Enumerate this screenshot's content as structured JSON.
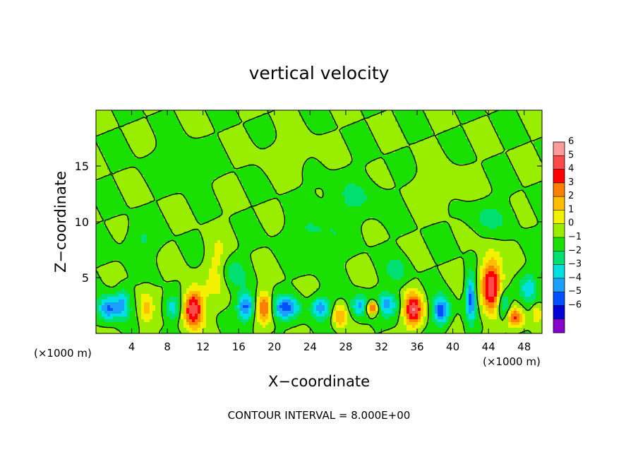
{
  "chart_data": {
    "type": "heatmap",
    "title": "vertical velocity",
    "xlabel": "X−coordinate",
    "ylabel": "Z−coordinate",
    "x_unit_left": "(×1000 m)",
    "x_unit_right": "(×1000 m)",
    "xlim": [
      0,
      50
    ],
    "ylim": [
      0,
      20
    ],
    "x_ticks": [
      4,
      8,
      12,
      16,
      20,
      24,
      28,
      32,
      36,
      40,
      44,
      48
    ],
    "x_tick_labels": [
      "4",
      "8",
      "12",
      "16",
      "20",
      "24",
      "28",
      "32",
      "36",
      "40",
      "44",
      "48"
    ],
    "y_ticks": [
      5,
      10,
      15
    ],
    "y_tick_labels": [
      "5",
      "10",
      "15"
    ],
    "contour_note": "CONTOUR INTERVAL = 8.000E+00",
    "colorbar": {
      "levels": [
        "6",
        "5",
        "4",
        "3",
        "2",
        "1",
        "0",
        "−1",
        "−2",
        "−3",
        "−4",
        "−5",
        "−6"
      ],
      "colors": [
        "#ff9a9a",
        "#ff4a4a",
        "#ff0000",
        "#ff7f00",
        "#ffbf00",
        "#f2f200",
        "#99ee00",
        "#19e000",
        "#00e070",
        "#00e0e0",
        "#1aa0ff",
        "#0050ff",
        "#0000d8",
        "#8800cc"
      ]
    },
    "background_value": 0,
    "features": [
      {
        "kind": "updraft",
        "x": 10.9,
        "z": 2.2,
        "amp": 6.2,
        "rx": 1.1,
        "rz": 1.7
      },
      {
        "kind": "updraft",
        "x": 44.3,
        "z": 4.3,
        "amp": 6.2,
        "rx": 1.1,
        "rz": 2.4
      },
      {
        "kind": "updraft",
        "x": 35.6,
        "z": 2.1,
        "amp": 6.0,
        "rx": 1.0,
        "rz": 1.5
      },
      {
        "kind": "updraft",
        "x": 31.0,
        "z": 2.3,
        "amp": 6.0,
        "rx": 0.7,
        "rz": 0.6
      },
      {
        "kind": "updraft",
        "x": 18.9,
        "z": 2.3,
        "amp": 4.3,
        "rx": 0.8,
        "rz": 1.3
      },
      {
        "kind": "updraft",
        "x": 47.0,
        "z": 1.4,
        "amp": 4.3,
        "rx": 0.9,
        "rz": 0.9
      },
      {
        "kind": "updraft",
        "x": 27.3,
        "z": 1.5,
        "amp": 3.1,
        "rx": 0.8,
        "rz": 1.0
      },
      {
        "kind": "updraft",
        "x": 5.6,
        "z": 2.2,
        "amp": 2.4,
        "rx": 0.8,
        "rz": 1.6
      },
      {
        "kind": "updraft",
        "x": 49.4,
        "z": 1.8,
        "amp": 2.0,
        "rx": 0.6,
        "rz": 0.9
      },
      {
        "kind": "updraft",
        "x": 13.6,
        "z": 5.8,
        "amp": 1.5,
        "rx": 1.3,
        "rz": 2.6
      },
      {
        "kind": "downdraft",
        "x": 1.4,
        "z": 2.2,
        "amp": -4.3,
        "rx": 1.1,
        "rz": 1.1
      },
      {
        "kind": "downdraft",
        "x": 3.0,
        "z": 2.6,
        "amp": -3.0,
        "rx": 0.8,
        "rz": 1.5
      },
      {
        "kind": "downdraft",
        "x": 8.6,
        "z": 2.3,
        "amp": -2.8,
        "rx": 0.9,
        "rz": 1.1
      },
      {
        "kind": "downdraft",
        "x": 16.8,
        "z": 2.4,
        "amp": -4.6,
        "rx": 0.9,
        "rz": 1.2
      },
      {
        "kind": "downdraft",
        "x": 21.3,
        "z": 2.3,
        "amp": -4.4,
        "rx": 1.5,
        "rz": 1.0
      },
      {
        "kind": "downdraft",
        "x": 25.2,
        "z": 2.3,
        "amp": -3.8,
        "rx": 1.1,
        "rz": 1.0
      },
      {
        "kind": "downdraft",
        "x": 29.6,
        "z": 2.4,
        "amp": -3.5,
        "rx": 1.0,
        "rz": 1.0
      },
      {
        "kind": "downdraft",
        "x": 32.6,
        "z": 2.6,
        "amp": -3.4,
        "rx": 1.3,
        "rz": 1.0
      },
      {
        "kind": "downdraft",
        "x": 38.7,
        "z": 2.0,
        "amp": -5.1,
        "rx": 0.9,
        "rz": 1.2
      },
      {
        "kind": "downdraft",
        "x": 42.0,
        "z": 3.2,
        "amp": -4.8,
        "rx": 0.5,
        "rz": 2.1
      },
      {
        "kind": "downdraft",
        "x": 45.7,
        "z": 2.6,
        "amp": -3.4,
        "rx": 0.7,
        "rz": 1.2
      },
      {
        "kind": "downdraft",
        "x": 48.5,
        "z": 4.1,
        "amp": -2.4,
        "rx": 1.0,
        "rz": 1.3
      },
      {
        "kind": "downdraft",
        "x": 15.3,
        "z": 5.5,
        "amp": -1.5,
        "rx": 1.5,
        "rz": 1.4
      },
      {
        "kind": "downdraft",
        "x": 33.8,
        "z": 5.6,
        "amp": -1.4,
        "rx": 1.3,
        "rz": 1.3
      },
      {
        "kind": "downdraft",
        "x": 24.5,
        "z": 8.7,
        "amp": -1.2,
        "rx": 3.0,
        "rz": 2.0
      },
      {
        "kind": "downdraft",
        "x": 44.2,
        "z": 10.4,
        "amp": -1.1,
        "rx": 2.8,
        "rz": 1.4
      },
      {
        "kind": "downdraft",
        "x": 5.0,
        "z": 8.3,
        "amp": -1.1,
        "rx": 1.8,
        "rz": 1.5
      },
      {
        "kind": "downdraft",
        "x": 28.9,
        "z": 12.0,
        "amp": -1.0,
        "rx": 3.5,
        "rz": 2.0
      },
      {
        "kind": "downdraft",
        "x": 9.5,
        "z": 15.3,
        "amp": -0.8,
        "rx": 3.0,
        "rz": 1.5
      },
      {
        "kind": "updraft",
        "x": 38.4,
        "z": 13.0,
        "amp": 0.8,
        "rx": 3.0,
        "rz": 1.8
      },
      {
        "kind": "updraft",
        "x": 21.8,
        "z": 16.0,
        "amp": 0.7,
        "rx": 3.0,
        "rz": 1.5
      }
    ]
  }
}
